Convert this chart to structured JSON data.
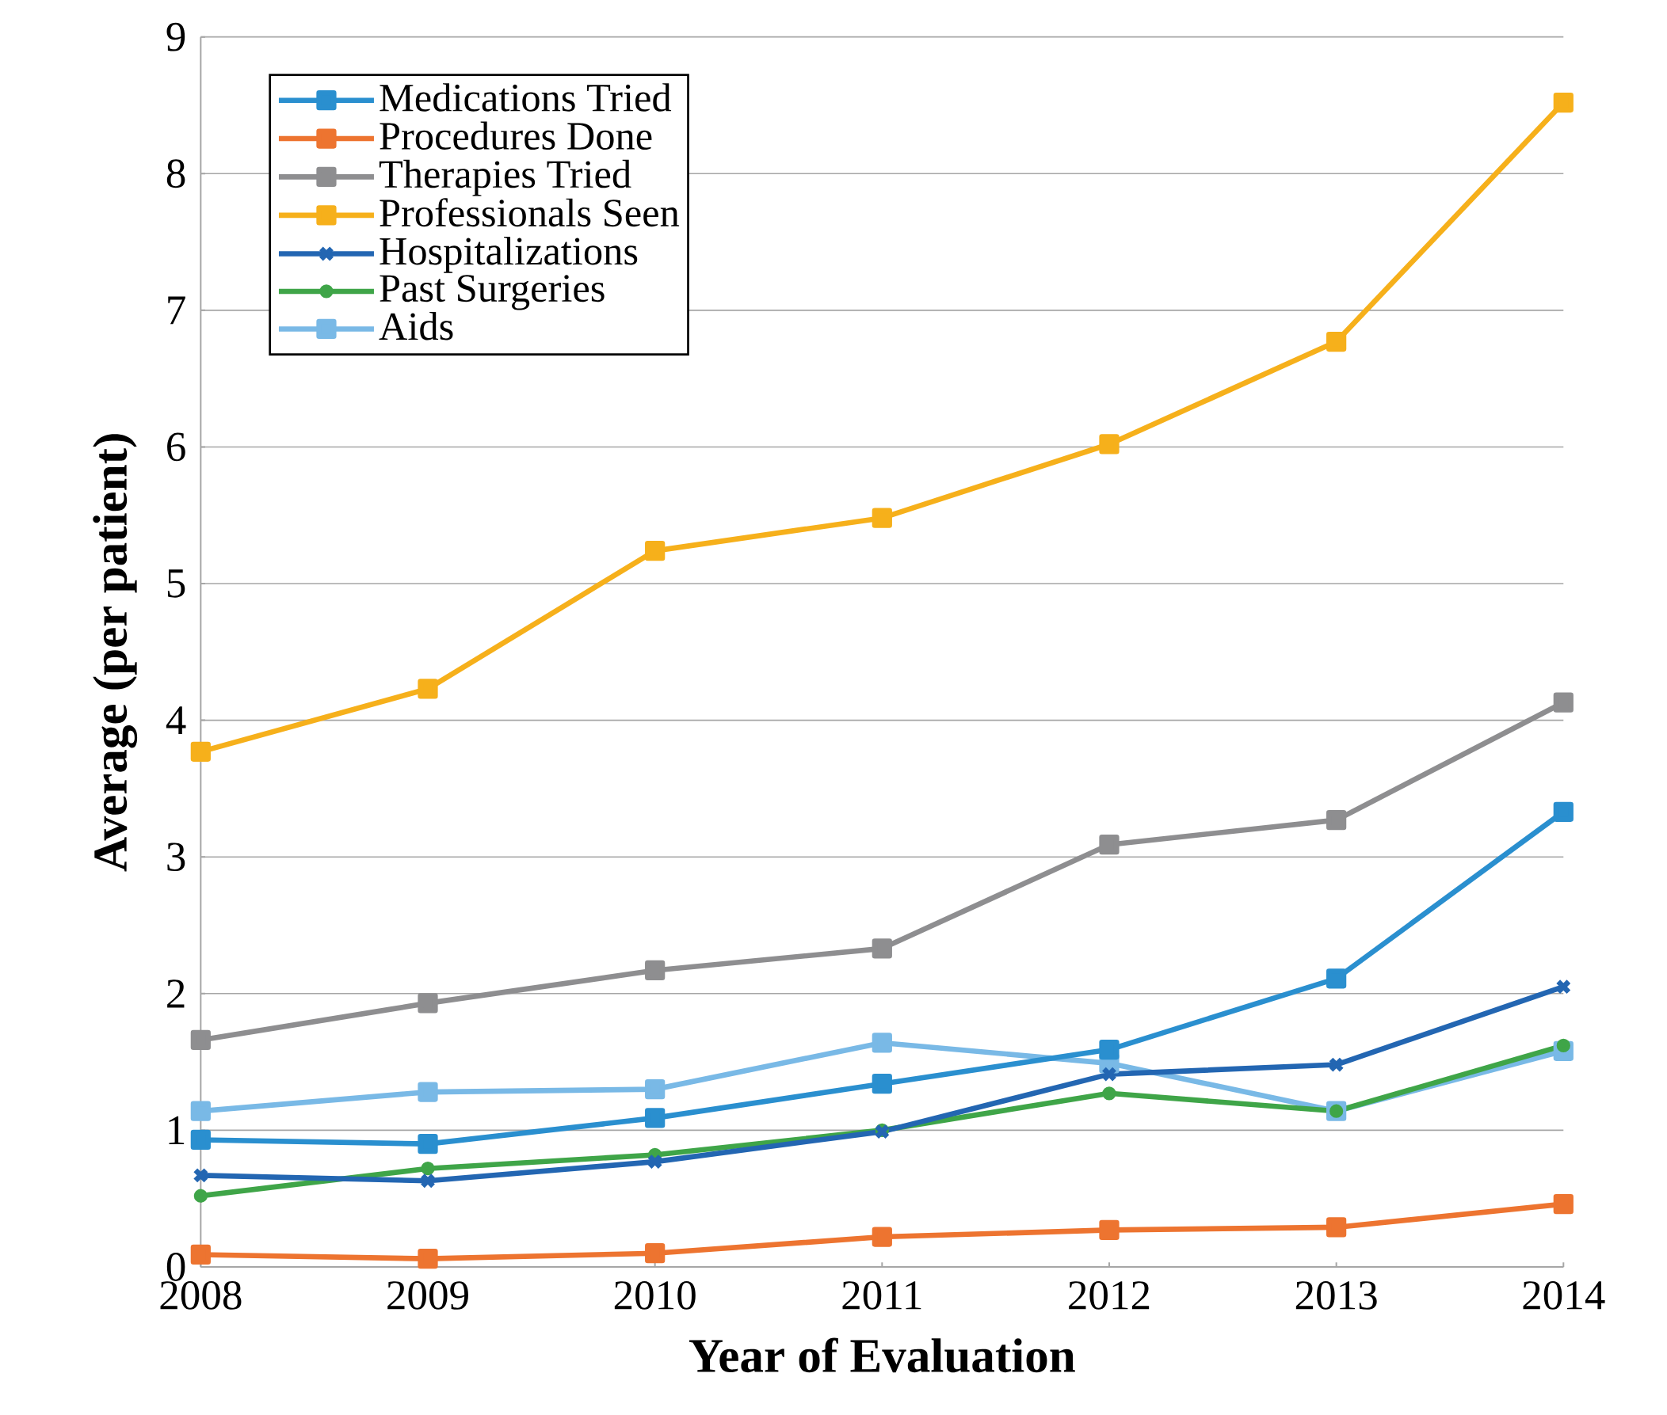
{
  "chart_data": {
    "type": "line",
    "xlabel": "Year of Evaluation",
    "ylabel": "Average (per patient)",
    "x": [
      2008,
      2009,
      2010,
      2011,
      2012,
      2013,
      2014
    ],
    "xlim": [
      2008,
      2014
    ],
    "xticks": [
      2008,
      2009,
      2010,
      2011,
      2012,
      2013,
      2014
    ],
    "ylim": [
      0,
      9
    ],
    "yticks": [
      0,
      1,
      2,
      3,
      4,
      5,
      6,
      7,
      8,
      9
    ],
    "grid": "y",
    "legend": "top left",
    "line_style": "solid",
    "series": [
      {
        "name": "Medications Tried",
        "color": "#2a8fcf",
        "marker": "square",
        "values": [
          0.93,
          0.9,
          1.09,
          1.34,
          1.59,
          2.11,
          3.33
        ]
      },
      {
        "name": "Procedures Done",
        "color": "#ed7430",
        "marker": "square",
        "values": [
          0.09,
          0.06,
          0.1,
          0.22,
          0.27,
          0.29,
          0.46
        ]
      },
      {
        "name": "Therapies Tried",
        "color": "#8e8e90",
        "marker": "square",
        "values": [
          1.66,
          1.93,
          2.17,
          2.33,
          3.09,
          3.27,
          4.13
        ]
      },
      {
        "name": "Professionals Seen",
        "color": "#f6b01b",
        "marker": "square",
        "values": [
          3.77,
          4.23,
          5.24,
          5.48,
          6.02,
          6.77,
          8.52
        ]
      },
      {
        "name": "Hospitalizations",
        "color": "#2366b2",
        "marker": "cross",
        "values": [
          0.67,
          0.63,
          0.77,
          0.99,
          1.41,
          1.48,
          2.05
        ]
      },
      {
        "name": "Past Surgeries",
        "color": "#3fa548",
        "marker": "circle",
        "values": [
          0.52,
          0.72,
          0.82,
          1.0,
          1.27,
          1.14,
          1.62
        ]
      },
      {
        "name": "Aids",
        "color": "#79b9e6",
        "marker": "square",
        "values": [
          1.14,
          1.28,
          1.3,
          1.64,
          1.49,
          1.14,
          1.58
        ]
      }
    ]
  }
}
